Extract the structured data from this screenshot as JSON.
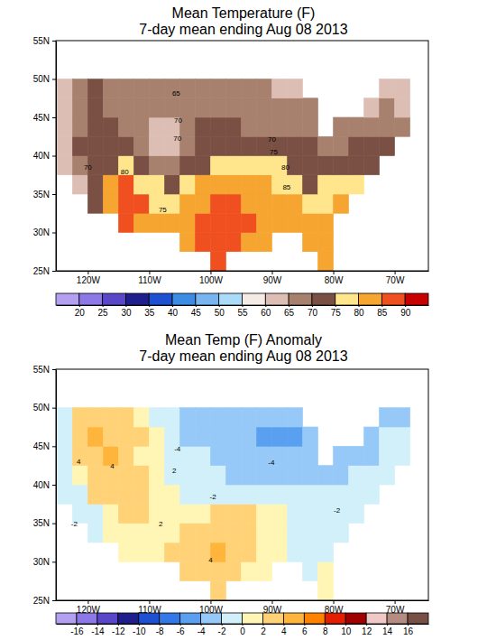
{
  "chart_data": [
    {
      "type": "heatmap",
      "title": "Mean Temperature (F)",
      "subtitle": "7-day mean ending Aug 08 2013",
      "x": [
        -125,
        -122.5,
        -120,
        -117.5,
        -115,
        -112.5,
        -110,
        -107.5,
        -105,
        -102.5,
        -100,
        -97.5,
        -95,
        -92.5,
        -90,
        -87.5,
        -85,
        -82.5,
        -80,
        -77.5,
        -75,
        -72.5,
        -70
      ],
      "y": [
        25,
        27.5,
        30,
        32.5,
        35,
        37.5,
        40,
        42.5,
        45,
        47.5
      ],
      "values": [
        [
          null,
          null,
          null,
          null,
          null,
          null,
          null,
          null,
          null,
          null,
          86,
          null,
          null,
          null,
          null,
          null,
          null,
          83,
          null,
          null,
          null,
          null,
          null
        ],
        [
          null,
          null,
          null,
          null,
          null,
          null,
          null,
          null,
          84,
          86,
          86,
          85,
          84,
          83,
          null,
          null,
          81,
          82,
          null,
          null,
          null,
          null,
          null
        ],
        [
          null,
          null,
          null,
          null,
          86,
          84,
          80,
          80,
          82,
          85,
          86,
          86,
          85,
          83,
          82,
          82,
          81,
          81,
          null,
          null,
          null,
          null,
          null
        ],
        [
          null,
          null,
          70,
          80,
          88,
          85,
          78,
          77,
          81,
          84,
          86,
          86,
          84,
          82,
          81,
          80,
          79,
          79,
          80,
          null,
          null,
          null,
          null
        ],
        [
          null,
          64,
          72,
          82,
          86,
          79,
          75,
          73,
          76,
          80,
          83,
          84,
          82,
          80,
          79,
          77,
          74,
          75,
          76,
          77,
          null,
          null,
          null
        ],
        [
          61,
          67,
          72,
          74,
          77,
          72,
          69,
          66,
          70,
          74,
          77,
          77,
          76,
          75,
          75,
          74,
          73,
          71,
          70,
          73,
          74,
          null,
          null
        ],
        [
          60,
          70,
          73,
          72,
          72,
          68,
          63,
          62,
          66,
          71,
          73,
          74,
          73,
          72,
          71,
          70,
          70,
          69,
          69,
          70,
          72,
          70,
          null
        ],
        [
          62,
          68,
          71,
          70,
          68,
          66,
          63,
          64,
          69,
          71,
          71,
          70,
          69,
          68,
          68,
          68,
          68,
          null,
          66,
          66,
          67,
          68,
          67
        ],
        [
          64,
          69,
          72,
          69,
          65,
          66,
          68,
          67,
          68,
          69,
          68,
          67,
          67,
          66,
          66,
          65,
          65,
          null,
          null,
          null,
          64,
          65,
          64
        ],
        [
          64,
          68,
          70,
          68,
          66,
          66,
          67,
          66,
          65,
          66,
          66,
          67,
          66,
          65,
          64,
          64,
          null,
          null,
          null,
          null,
          null,
          64,
          63
        ]
      ],
      "xlim": [
        -125.2,
        -64.5
      ],
      "ylim": [
        25,
        55
      ],
      "xticks": [
        {
          "value": -120,
          "label": "120W"
        },
        {
          "value": -110,
          "label": "110W"
        },
        {
          "value": -100,
          "label": "100W"
        },
        {
          "value": -90,
          "label": "90W"
        },
        {
          "value": -80,
          "label": "80W"
        },
        {
          "value": -70,
          "label": "70W"
        }
      ],
      "yticks": [
        {
          "value": 25,
          "label": "25N"
        },
        {
          "value": 30,
          "label": "30N"
        },
        {
          "value": 35,
          "label": "35N"
        },
        {
          "value": 40,
          "label": "40N"
        },
        {
          "value": 45,
          "label": "45N"
        },
        {
          "value": 50,
          "label": "50N"
        },
        {
          "value": 55,
          "label": "55N"
        }
      ],
      "colorbar_range": [
        15,
        95
      ],
      "colorbar_ticks": [
        20,
        25,
        30,
        35,
        40,
        45,
        50,
        55,
        60,
        65,
        70,
        75,
        80,
        85,
        90
      ],
      "colors": [
        "#b4a0f0",
        "#8c78e6",
        "#5a46c8",
        "#1e1e8c",
        "#1e50d2",
        "#3c8ce6",
        "#78b4f0",
        "#aadcfa",
        "#f5ebe6",
        "#dcbeb4",
        "#a8806e",
        "#7a5044",
        "#ffe68c",
        "#f5a530",
        "#f05020",
        "#c80000"
      ],
      "annotations": [
        {
          "text": "65",
          "x": -105.6,
          "y": 48.1
        },
        {
          "text": "70",
          "x": -105.3,
          "y": 44.6
        },
        {
          "text": "70",
          "x": -105.4,
          "y": 42.2
        },
        {
          "text": "70",
          "x": -120.0,
          "y": 38.4
        },
        {
          "text": "80",
          "x": -114.0,
          "y": 37.8
        },
        {
          "text": "75",
          "x": -107.8,
          "y": 32.9
        },
        {
          "text": "70",
          "x": -90.0,
          "y": 42.1
        },
        {
          "text": "75",
          "x": -89.7,
          "y": 40.4
        },
        {
          "text": "80",
          "x": -87.8,
          "y": 38.4
        },
        {
          "text": "85",
          "x": -87.6,
          "y": 35.8
        }
      ]
    },
    {
      "type": "heatmap",
      "title": "Mean Temp (F) Anomaly",
      "subtitle": "7-day mean ending Aug 08 2013",
      "x": [
        -125,
        -122.5,
        -120,
        -117.5,
        -115,
        -112.5,
        -110,
        -107.5,
        -105,
        -102.5,
        -100,
        -97.5,
        -95,
        -92.5,
        -90,
        -87.5,
        -85,
        -82.5,
        -80,
        -77.5,
        -75,
        -72.5,
        -70
      ],
      "y": [
        25,
        27.5,
        30,
        32.5,
        35,
        37.5,
        40,
        42.5,
        45,
        47.5
      ],
      "values": [
        [
          null,
          null,
          null,
          null,
          null,
          null,
          null,
          null,
          null,
          null,
          2,
          null,
          null,
          null,
          null,
          null,
          null,
          0,
          null,
          null,
          null,
          null,
          null
        ],
        [
          null,
          null,
          null,
          null,
          null,
          null,
          null,
          null,
          2,
          3,
          3,
          2,
          1,
          1,
          null,
          null,
          -1,
          0,
          null,
          null,
          null,
          null,
          null
        ],
        [
          null,
          null,
          null,
          null,
          1,
          1,
          1,
          2,
          2,
          3,
          4,
          3,
          2,
          1,
          0,
          -1,
          -1,
          -1,
          null,
          null,
          null,
          null,
          null
        ],
        [
          null,
          null,
          -1,
          0,
          1,
          1,
          1,
          1,
          2,
          3,
          3,
          3,
          2,
          1,
          0,
          -1,
          -1,
          -1,
          -1,
          null,
          null,
          null,
          null
        ],
        [
          null,
          -2,
          -1,
          1,
          2,
          2,
          1,
          0,
          0,
          1,
          2,
          3,
          2,
          1,
          0,
          -1,
          -1,
          -1,
          -1,
          -1,
          null,
          null,
          null
        ],
        [
          -2,
          -1,
          2,
          2,
          2,
          2,
          1,
          0,
          -1,
          -1,
          -1,
          -2,
          -2,
          -2,
          -2,
          -2,
          -2,
          -2,
          -2,
          -1,
          -1,
          null,
          null
        ],
        [
          -2,
          1,
          3,
          3,
          3,
          2,
          0,
          -1,
          -1,
          -2,
          -2,
          -3,
          -3,
          -3,
          -3,
          -3,
          -3,
          -3,
          -3,
          -2,
          -2,
          -2,
          null
        ],
        [
          -1,
          2,
          3,
          4,
          3,
          1,
          0,
          -1,
          -2,
          -2,
          -3,
          -3,
          -4,
          -4,
          -4,
          -4,
          -4,
          null,
          -3,
          -3,
          -3,
          -2,
          -2
        ],
        [
          -1,
          3,
          4,
          3,
          2,
          2,
          0,
          -2,
          -3,
          -3,
          -3,
          -4,
          -4,
          -5,
          -5,
          -5,
          -4,
          null,
          null,
          null,
          -3,
          -2,
          -2
        ],
        [
          -1,
          2,
          3,
          3,
          2,
          0,
          -1,
          -2,
          -3,
          -4,
          -4,
          -4,
          -4,
          -4,
          -4,
          -4,
          null,
          null,
          null,
          null,
          null,
          -3,
          -3
        ]
      ],
      "xlim": [
        -125.2,
        -64.5
      ],
      "ylim": [
        25,
        55
      ],
      "xticks": [
        {
          "value": -120,
          "label": "120W"
        },
        {
          "value": -110,
          "label": "110W"
        },
        {
          "value": -100,
          "label": "100W"
        },
        {
          "value": -90,
          "label": "90W"
        },
        {
          "value": -80,
          "label": "80W"
        },
        {
          "value": -70,
          "label": "70W"
        }
      ],
      "yticks": [
        {
          "value": 25,
          "label": "25N"
        },
        {
          "value": 30,
          "label": "30N"
        },
        {
          "value": 35,
          "label": "35N"
        },
        {
          "value": 40,
          "label": "40N"
        },
        {
          "value": 45,
          "label": "45N"
        },
        {
          "value": 50,
          "label": "50N"
        },
        {
          "value": 55,
          "label": "55N"
        }
      ],
      "colorbar_range": [
        -18,
        18
      ],
      "colorbar_ticks": [
        -16,
        -14,
        -12,
        -10,
        -8,
        -6,
        -4,
        -2,
        0,
        2,
        4,
        6,
        8,
        10,
        12,
        14,
        16
      ],
      "colors": [
        "#b4a0f0",
        "#8c78e6",
        "#5a46c8",
        "#1e1e8c",
        "#1e50d2",
        "#3278e6",
        "#5aa0f0",
        "#96c8f8",
        "#d2f0fa",
        "#fff5b4",
        "#ffd278",
        "#ffb43c",
        "#ff8200",
        "#e61e00",
        "#a00000",
        "#f0c8c8",
        "#b48c82",
        "#785046"
      ],
      "annotations": [
        {
          "text": "-4",
          "x": -105.4,
          "y": 44.6
        },
        {
          "text": "4",
          "x": -121.5,
          "y": 42.9
        },
        {
          "text": "4",
          "x": -116.0,
          "y": 42.3
        },
        {
          "text": "2",
          "x": -105.9,
          "y": 41.8
        },
        {
          "text": "-4",
          "x": -90.1,
          "y": 42.8
        },
        {
          "text": "-2",
          "x": -99.6,
          "y": 38.4
        },
        {
          "text": "-2",
          "x": -122.2,
          "y": 34.8
        },
        {
          "text": "2",
          "x": -108.1,
          "y": 34.9
        },
        {
          "text": "-2",
          "x": -79.4,
          "y": 36.6
        },
        {
          "text": "4",
          "x": -100.0,
          "y": 30.2
        }
      ]
    }
  ]
}
